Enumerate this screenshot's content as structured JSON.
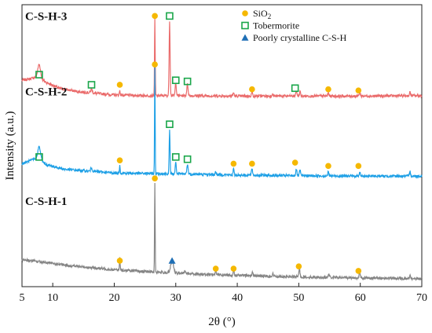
{
  "chart_data": {
    "type": "line",
    "xlabel": "2θ (°)",
    "ylabel": "Intensity (a.u.)",
    "xlim": [
      5,
      70
    ],
    "x_ticks": [
      5,
      10,
      20,
      30,
      40,
      50,
      60,
      70
    ],
    "y_ticks_shown": false,
    "legend_position": "top-right",
    "legend": [
      {
        "marker": "circle",
        "color": "#f5b800",
        "label": "SiO",
        "subscript": "2"
      },
      {
        "marker": "square",
        "color": "#1aa64a",
        "label": "Tobermorite"
      },
      {
        "marker": "triangle",
        "color": "#1f6fb5",
        "label": "Poorly crystalline C-S-H"
      }
    ],
    "series": [
      {
        "name": "C-S-H-3",
        "color": "#ea6b6b",
        "baseline": 0.845,
        "noise": 0.006,
        "background": [
          [
            5,
            0.07
          ],
          [
            6,
            0.075
          ],
          [
            7.5,
            0.085
          ],
          [
            9,
            0.06
          ],
          [
            11,
            0.035
          ],
          [
            14,
            0.02
          ],
          [
            17,
            0.012
          ],
          [
            20,
            0.005
          ],
          [
            25,
            0.002
          ],
          [
            30,
            0.002
          ],
          [
            40,
            0.0
          ],
          [
            50,
            0.0
          ],
          [
            60,
            0.0
          ],
          [
            70,
            0.002
          ]
        ],
        "peaks": [
          [
            7.8,
            0.06,
            0.5
          ],
          [
            16.3,
            0.018,
            0.3
          ],
          [
            20.9,
            0.02,
            0.15
          ],
          [
            26.6,
            0.34,
            0.12
          ],
          [
            29.0,
            0.33,
            0.18
          ],
          [
            30.0,
            0.06,
            0.2
          ],
          [
            31.9,
            0.05,
            0.25
          ],
          [
            39.4,
            0.015,
            0.2
          ],
          [
            42.4,
            0.018,
            0.2
          ],
          [
            45.7,
            0.01,
            0.2
          ],
          [
            49.6,
            0.02,
            0.25
          ],
          [
            50.2,
            0.02,
            0.2
          ],
          [
            54.8,
            0.015,
            0.2
          ],
          [
            59.9,
            0.02,
            0.2
          ],
          [
            68.1,
            0.015,
            0.2
          ]
        ]
      },
      {
        "name": "C-S-H-2",
        "color": "#1ea0e6",
        "baseline": 0.5,
        "noise": 0.006,
        "background": [
          [
            5,
            0.045
          ],
          [
            7.5,
            0.07
          ],
          [
            9,
            0.04
          ],
          [
            12,
            0.02
          ],
          [
            16,
            0.012
          ],
          [
            20,
            0.004
          ],
          [
            30,
            0.0
          ],
          [
            40,
            -0.005
          ],
          [
            50,
            -0.008
          ],
          [
            60,
            -0.01
          ],
          [
            70,
            -0.01
          ]
        ],
        "peaks": [
          [
            7.8,
            0.055,
            0.5
          ],
          [
            16.3,
            0.015,
            0.3
          ],
          [
            20.9,
            0.04,
            0.12
          ],
          [
            26.6,
            0.47,
            0.11
          ],
          [
            29.0,
            0.19,
            0.16
          ],
          [
            30.0,
            0.05,
            0.2
          ],
          [
            31.9,
            0.04,
            0.25
          ],
          [
            36.5,
            0.012,
            0.2
          ],
          [
            39.4,
            0.03,
            0.15
          ],
          [
            42.4,
            0.03,
            0.2
          ],
          [
            49.6,
            0.03,
            0.2
          ],
          [
            50.2,
            0.025,
            0.2
          ],
          [
            54.8,
            0.018,
            0.2
          ],
          [
            59.9,
            0.02,
            0.2
          ],
          [
            68.1,
            0.02,
            0.2
          ]
        ]
      },
      {
        "name": "C-S-H-1",
        "color": "#858585",
        "baseline": 0.035,
        "noise": 0.006,
        "background": [
          [
            5,
            0.085
          ],
          [
            8,
            0.075
          ],
          [
            12,
            0.06
          ],
          [
            16,
            0.05
          ],
          [
            20,
            0.04
          ],
          [
            25,
            0.032
          ],
          [
            30,
            0.025
          ],
          [
            35,
            0.02
          ],
          [
            40,
            0.015
          ],
          [
            50,
            0.008
          ],
          [
            60,
            0.004
          ],
          [
            70,
            0.0
          ]
        ],
        "peaks": [
          [
            20.9,
            0.055,
            0.12
          ],
          [
            26.6,
            0.4,
            0.11
          ],
          [
            29.4,
            0.055,
            0.5
          ],
          [
            31.5,
            0.01,
            0.3
          ],
          [
            36.5,
            0.025,
            0.15
          ],
          [
            39.4,
            0.03,
            0.15
          ],
          [
            42.5,
            0.015,
            0.2
          ],
          [
            45.8,
            0.01,
            0.2
          ],
          [
            50.1,
            0.04,
            0.2
          ],
          [
            54.9,
            0.015,
            0.2
          ],
          [
            59.9,
            0.025,
            0.2
          ],
          [
            68.1,
            0.015,
            0.2
          ]
        ]
      }
    ],
    "markers": [
      {
        "series": "C-S-H-3",
        "type": "square",
        "x": 7.8,
        "y": 0.94
      },
      {
        "series": "C-S-H-3",
        "type": "square",
        "x": 16.3,
        "y": 0.895
      },
      {
        "series": "C-S-H-3",
        "type": "circle",
        "x": 20.9,
        "y": 0.895
      },
      {
        "series": "C-S-H-3",
        "type": "circle",
        "x": 26.6,
        "y": 1.2
      },
      {
        "series": "C-S-H-3",
        "type": "square",
        "x": 29.0,
        "y": 1.2
      },
      {
        "series": "C-S-H-3",
        "type": "square",
        "x": 30.0,
        "y": 0.915
      },
      {
        "series": "C-S-H-3",
        "type": "square",
        "x": 31.9,
        "y": 0.91
      },
      {
        "series": "C-S-H-3",
        "type": "circle",
        "x": 42.4,
        "y": 0.875
      },
      {
        "series": "C-S-H-3",
        "type": "square",
        "x": 49.4,
        "y": 0.88
      },
      {
        "series": "C-S-H-3",
        "type": "circle",
        "x": 54.8,
        "y": 0.875
      },
      {
        "series": "C-S-H-3",
        "type": "circle",
        "x": 59.7,
        "y": 0.87
      },
      {
        "series": "C-S-H-2",
        "type": "square",
        "x": 7.8,
        "y": 0.575
      },
      {
        "series": "C-S-H-2",
        "type": "circle",
        "x": 20.9,
        "y": 0.56
      },
      {
        "series": "C-S-H-2",
        "type": "circle",
        "x": 26.6,
        "y": 0.985
      },
      {
        "series": "C-S-H-2",
        "type": "square",
        "x": 29.0,
        "y": 0.72
      },
      {
        "series": "C-S-H-2",
        "type": "square",
        "x": 30.0,
        "y": 0.575
      },
      {
        "series": "C-S-H-2",
        "type": "square",
        "x": 31.9,
        "y": 0.565
      },
      {
        "series": "C-S-H-2",
        "type": "circle",
        "x": 39.4,
        "y": 0.545
      },
      {
        "series": "C-S-H-2",
        "type": "circle",
        "x": 42.4,
        "y": 0.545
      },
      {
        "series": "C-S-H-2",
        "type": "circle",
        "x": 49.4,
        "y": 0.55
      },
      {
        "series": "C-S-H-2",
        "type": "circle",
        "x": 54.8,
        "y": 0.535
      },
      {
        "series": "C-S-H-2",
        "type": "circle",
        "x": 59.7,
        "y": 0.535
      },
      {
        "series": "C-S-H-1",
        "type": "circle",
        "x": 26.6,
        "y": 0.48
      },
      {
        "series": "C-S-H-1",
        "type": "circle",
        "x": 20.9,
        "y": 0.115
      },
      {
        "series": "C-S-H-1",
        "type": "triangle",
        "x": 29.4,
        "y": 0.115
      },
      {
        "series": "C-S-H-1",
        "type": "circle",
        "x": 36.5,
        "y": 0.08
      },
      {
        "series": "C-S-H-1",
        "type": "circle",
        "x": 39.4,
        "y": 0.08
      },
      {
        "series": "C-S-H-1",
        "type": "circle",
        "x": 50.0,
        "y": 0.09
      },
      {
        "series": "C-S-H-1",
        "type": "circle",
        "x": 59.7,
        "y": 0.07
      }
    ]
  }
}
